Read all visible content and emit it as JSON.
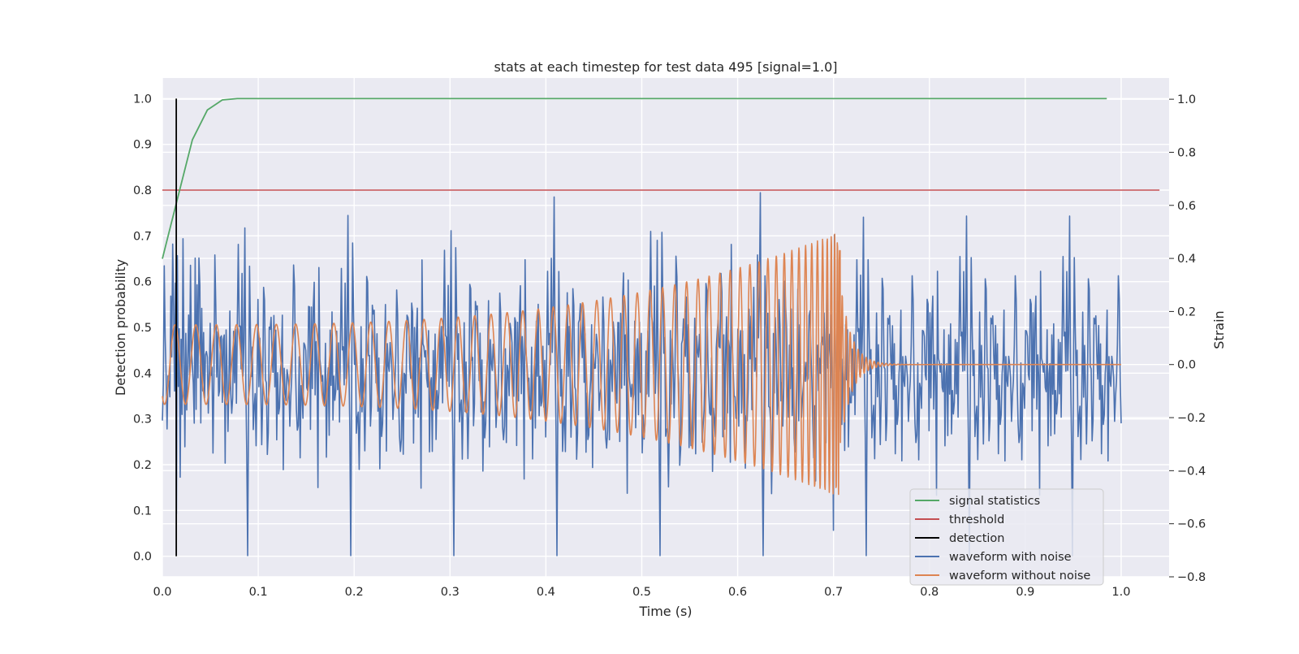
{
  "chart_data": {
    "type": "line",
    "title": "stats at each timestep for test data 495 [signal=1.0]",
    "xlabel": "Time (s)",
    "ylabel": "Detection probability",
    "ylabel_right": "Strain",
    "xlim": [
      0.0,
      1.05
    ],
    "ylim": [
      -0.045,
      1.045
    ],
    "ylim_right": [
      -0.8,
      1.08
    ],
    "x_ticks": [
      "0.0",
      "0.1",
      "0.2",
      "0.3",
      "0.4",
      "0.5",
      "0.6",
      "0.7",
      "0.8",
      "0.9",
      "1.0"
    ],
    "y_ticks": [
      "0.0",
      "0.1",
      "0.2",
      "0.3",
      "0.4",
      "0.5",
      "0.6",
      "0.7",
      "0.8",
      "0.9",
      "1.0"
    ],
    "y_right_ticks": [
      "−0.8",
      "−0.6",
      "−0.4",
      "−0.2",
      "0.0",
      "0.2",
      "0.4",
      "0.6",
      "0.8",
      "1.0"
    ],
    "grid": true,
    "legend_position": "bottom-right",
    "series": [
      {
        "name": "signal statistics",
        "color": "#55a868",
        "axis": "left",
        "x": [
          0.0,
          0.0156,
          0.0313,
          0.0469,
          0.0625,
          0.0781,
          0.1,
          0.2,
          0.4,
          0.6,
          0.8,
          0.985
        ],
        "y": [
          0.65,
          0.78,
          0.91,
          0.975,
          0.997,
          1.0,
          1.0,
          1.0,
          1.0,
          1.0,
          1.0,
          1.0
        ]
      },
      {
        "name": "threshold",
        "color": "#c44e52",
        "axis": "left",
        "x": [
          0.0,
          1.04
        ],
        "y": [
          0.8,
          0.8
        ]
      },
      {
        "name": "detection",
        "color": "#000000",
        "axis": "left",
        "x": [
          0.0145,
          0.0145
        ],
        "y": [
          0.0,
          1.0
        ]
      },
      {
        "name": "waveform with noise",
        "color": "#4c72b0",
        "axis": "right",
        "x_range": [
          0.0,
          1.0
        ],
        "points": 1024,
        "amplitude_right": 1.0
      },
      {
        "name": "waveform without noise",
        "color": "#dd8452",
        "axis": "right",
        "x_range": [
          0.0,
          1.0
        ],
        "merger_time": 0.707,
        "peak_strain": 0.5
      }
    ]
  }
}
